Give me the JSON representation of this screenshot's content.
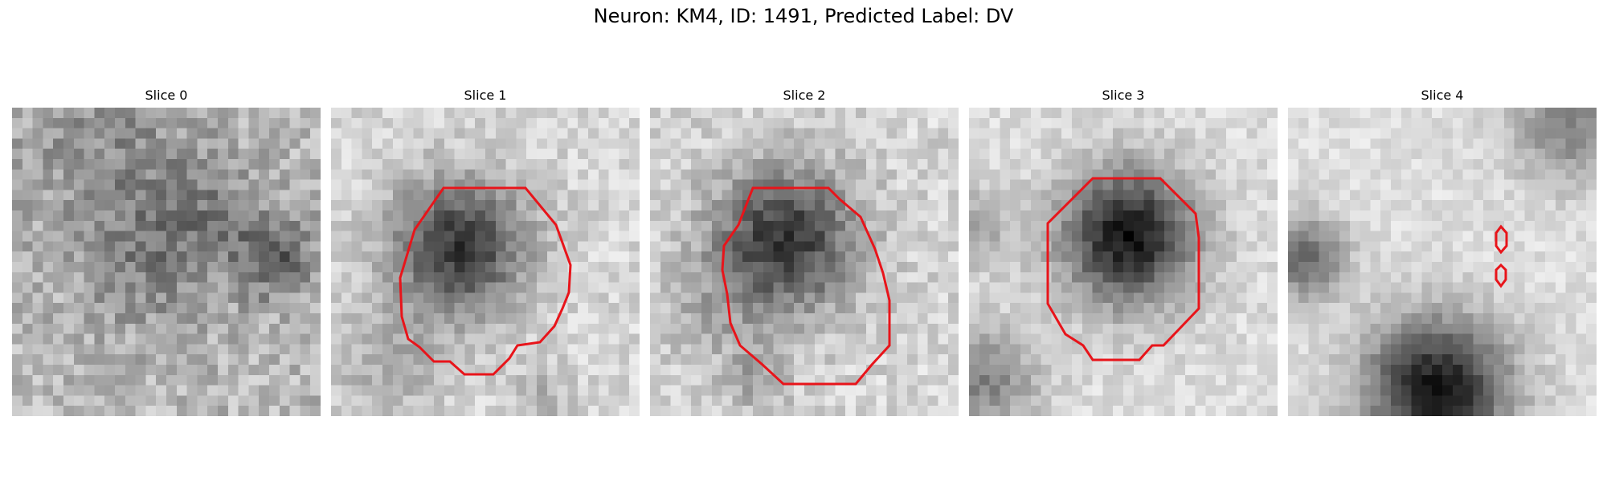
{
  "figure": {
    "title": "Neuron: KM4, ID: 1491, Predicted Label: DV"
  },
  "panels": [
    {
      "title": "Slice 0",
      "has_contour": false
    },
    {
      "title": "Slice 1",
      "has_contour": true
    },
    {
      "title": "Slice 2",
      "has_contour": true
    },
    {
      "title": "Slice 3",
      "has_contour": true
    },
    {
      "title": "Slice 4",
      "has_contour": true
    }
  ],
  "colors": {
    "contour": "#e8141a",
    "colormap": "gray"
  }
}
